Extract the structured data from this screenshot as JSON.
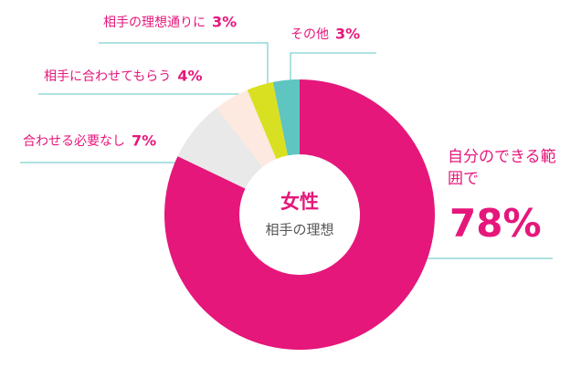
{
  "chart_data": {
    "type": "donut",
    "center_title": "女性",
    "center_subtitle": "相手の理想",
    "categories": [
      "自分のできる範囲で",
      "合わせる必要なし",
      "相手に合わせてもらう",
      "相手の理想通りに",
      "その他"
    ],
    "values": [
      78,
      7,
      4,
      3,
      3
    ],
    "value_labels": [
      "78%",
      "7%",
      "4%",
      "3%",
      "3%"
    ],
    "colors": [
      "#e5177b",
      "#e9e9e9",
      "#fde9df",
      "#d9e021",
      "#5ec5c1"
    ]
  }
}
